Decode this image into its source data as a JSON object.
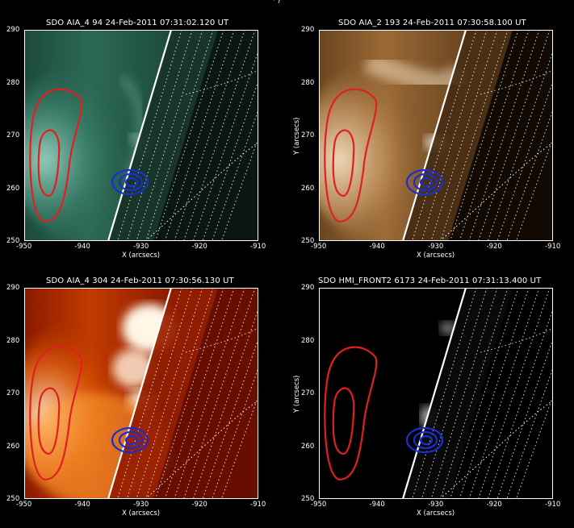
{
  "figure_fragment": "·  )",
  "axes": {
    "xlabel": "X (arcsecs)",
    "ylabel": "Y (arcsecs)",
    "xticks": [
      "-950",
      "-940",
      "-930",
      "-920",
      "-910"
    ],
    "yticks": [
      "290",
      "280",
      "270",
      "260",
      "250"
    ]
  },
  "panels": [
    {
      "title": "SDO AIA_4 94 24-Feb-2011 07:31:02.120 UT",
      "colormap": "aia94",
      "has_ylabel": false
    },
    {
      "title": "SDO AIA_2 193 24-Feb-2011 07:30:58.100 UT",
      "colormap": "aia193",
      "has_ylabel": true
    },
    {
      "title": "SDO AIA_4 304 24-Feb-2011 07:30:56.130 UT",
      "colormap": "aia304",
      "has_ylabel": false
    },
    {
      "title": "SDO HMI_FRONT2 6173 24-Feb-2011 07:31:13.400 UT",
      "colormap": "hmi",
      "has_ylabel": true
    }
  ],
  "contour_colors": {
    "red": "#e02020",
    "blue": "#1a2fd0",
    "limb": "#ffffff"
  }
}
